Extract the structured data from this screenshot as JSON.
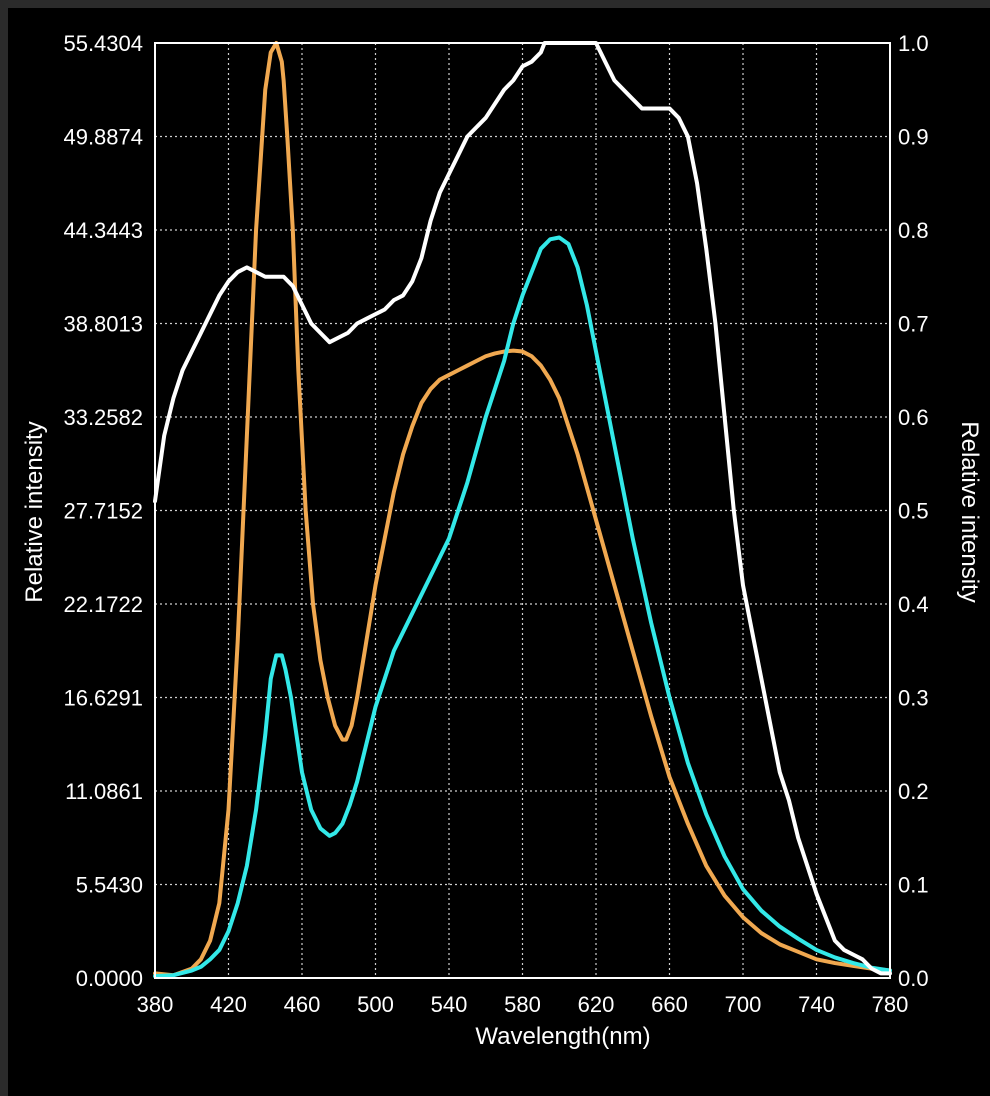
{
  "chart_data": {
    "type": "line",
    "xlabel": "Wavelength(nm)",
    "ylabel_left": "Relative intensity",
    "ylabel_right": "Relative intensity",
    "xlim": [
      380,
      780
    ],
    "ylim_left": [
      0,
      55.4304
    ],
    "ylim_right": [
      0,
      1.0
    ],
    "x_ticks": [
      "380",
      "420",
      "460",
      "500",
      "540",
      "580",
      "620",
      "660",
      "700",
      "740",
      "780"
    ],
    "y_left_ticks": [
      "0.0000",
      "5.5430",
      "11.0861",
      "16.6291",
      "22.1722",
      "27.7152",
      "33.2582",
      "38.8013",
      "44.3443",
      "49.8874",
      "55.4304"
    ],
    "y_right_ticks": [
      "0.0",
      "0.1",
      "0.2",
      "0.3",
      "0.4",
      "0.5",
      "0.6",
      "0.7",
      "0.8",
      "0.9",
      "1.0"
    ],
    "grid": true,
    "colors": {
      "series_1": "#f0a850",
      "series_2": "#33e8e8",
      "series_3": "#ffffff",
      "grid": "#cfcfcf",
      "frame": "#ffffff"
    },
    "series": [
      {
        "axis": "right",
        "color": "#f0a850",
        "x": [
          380,
          390,
          400,
          405,
          410,
          415,
          420,
          425,
          430,
          435,
          440,
          443,
          446,
          449,
          450,
          452,
          455,
          458,
          462,
          466,
          470,
          474,
          478,
          482,
          484,
          487,
          490,
          495,
          500,
          505,
          510,
          515,
          520,
          525,
          530,
          535,
          540,
          545,
          550,
          555,
          560,
          565,
          570,
          575,
          580,
          585,
          590,
          595,
          600,
          610,
          620,
          630,
          640,
          650,
          660,
          670,
          680,
          690,
          700,
          710,
          720,
          730,
          740,
          750,
          760,
          770,
          780
        ],
        "y": [
          0.005,
          0.003,
          0.01,
          0.02,
          0.04,
          0.08,
          0.18,
          0.36,
          0.58,
          0.8,
          0.95,
          0.99,
          1.0,
          0.98,
          0.96,
          0.9,
          0.8,
          0.65,
          0.5,
          0.4,
          0.34,
          0.3,
          0.27,
          0.255,
          0.255,
          0.27,
          0.3,
          0.36,
          0.42,
          0.47,
          0.52,
          0.56,
          0.59,
          0.615,
          0.63,
          0.64,
          0.645,
          0.65,
          0.655,
          0.66,
          0.665,
          0.668,
          0.67,
          0.671,
          0.67,
          0.665,
          0.655,
          0.64,
          0.62,
          0.56,
          0.49,
          0.42,
          0.35,
          0.28,
          0.215,
          0.165,
          0.12,
          0.088,
          0.065,
          0.048,
          0.036,
          0.028,
          0.02,
          0.016,
          0.013,
          0.01,
          0.008
        ]
      },
      {
        "axis": "right",
        "color": "#33e8e8",
        "x": [
          380,
          390,
          400,
          405,
          410,
          415,
          420,
          425,
          430,
          435,
          440,
          443,
          446,
          449,
          451,
          454,
          457,
          460,
          465,
          470,
          475,
          478,
          482,
          486,
          490,
          495,
          500,
          510,
          520,
          530,
          540,
          550,
          560,
          570,
          575,
          580,
          590,
          595,
          600,
          605,
          610,
          615,
          620,
          630,
          640,
          650,
          660,
          670,
          680,
          690,
          700,
          710,
          720,
          730,
          740,
          750,
          760,
          770,
          780
        ],
        "y": [
          0.002,
          0.003,
          0.008,
          0.012,
          0.02,
          0.03,
          0.05,
          0.08,
          0.12,
          0.18,
          0.26,
          0.32,
          0.345,
          0.345,
          0.33,
          0.3,
          0.26,
          0.22,
          0.18,
          0.16,
          0.152,
          0.155,
          0.165,
          0.185,
          0.21,
          0.25,
          0.29,
          0.35,
          0.39,
          0.43,
          0.47,
          0.53,
          0.6,
          0.66,
          0.7,
          0.73,
          0.78,
          0.79,
          0.792,
          0.785,
          0.76,
          0.72,
          0.67,
          0.57,
          0.47,
          0.38,
          0.3,
          0.23,
          0.175,
          0.13,
          0.095,
          0.072,
          0.055,
          0.042,
          0.03,
          0.022,
          0.016,
          0.011,
          0.008
        ]
      },
      {
        "axis": "right",
        "color": "#ffffff",
        "x": [
          380,
          385,
          390,
          395,
          400,
          405,
          410,
          415,
          420,
          425,
          430,
          435,
          440,
          445,
          450,
          455,
          460,
          465,
          470,
          475,
          480,
          485,
          490,
          495,
          500,
          505,
          510,
          515,
          520,
          525,
          530,
          535,
          540,
          545,
          550,
          555,
          560,
          565,
          570,
          575,
          580,
          585,
          590,
          592,
          600,
          610,
          620,
          625,
          630,
          635,
          640,
          645,
          650,
          655,
          660,
          665,
          670,
          675,
          680,
          685,
          690,
          695,
          700,
          705,
          710,
          715,
          720,
          725,
          730,
          735,
          740,
          745,
          750,
          755,
          760,
          765,
          770,
          775,
          780
        ],
        "y": [
          0.51,
          0.58,
          0.62,
          0.65,
          0.67,
          0.69,
          0.71,
          0.73,
          0.745,
          0.755,
          0.76,
          0.755,
          0.75,
          0.75,
          0.75,
          0.74,
          0.72,
          0.7,
          0.69,
          0.68,
          0.685,
          0.69,
          0.7,
          0.705,
          0.71,
          0.715,
          0.725,
          0.73,
          0.745,
          0.77,
          0.81,
          0.84,
          0.86,
          0.88,
          0.9,
          0.91,
          0.92,
          0.935,
          0.95,
          0.96,
          0.975,
          0.98,
          0.99,
          1.0,
          1.0,
          1.0,
          1.0,
          0.98,
          0.96,
          0.95,
          0.94,
          0.93,
          0.93,
          0.93,
          0.93,
          0.92,
          0.9,
          0.85,
          0.78,
          0.7,
          0.6,
          0.5,
          0.42,
          0.37,
          0.32,
          0.27,
          0.22,
          0.19,
          0.15,
          0.12,
          0.09,
          0.065,
          0.04,
          0.03,
          0.025,
          0.02,
          0.01,
          0.005,
          0.005
        ]
      }
    ]
  }
}
